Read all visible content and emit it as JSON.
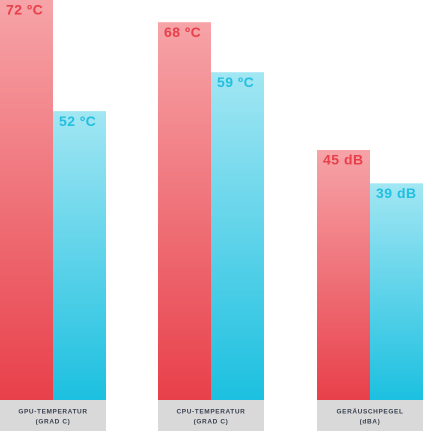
{
  "chart_data": {
    "type": "bar",
    "categories": [
      [
        "GPU-TEMPERATUR",
        "(GRAD C)"
      ],
      [
        "CPU-TEMPERATUR",
        "(GRAD C)"
      ],
      [
        "GERÄUSCHPEGEL",
        "(dBA)"
      ]
    ],
    "series": [
      {
        "color": "#e8404a",
        "color_top": "#f6a4a8",
        "label_color": "#e8404a",
        "values": [
          72,
          68,
          45
        ],
        "value_labels": [
          "72 ºC",
          "68 ºC",
          "45 dB"
        ]
      },
      {
        "color": "#1cc0e0",
        "color_top": "#a2e6f3",
        "label_color": "#22bfe0",
        "values": [
          52,
          59,
          39
        ],
        "value_labels": [
          "52 ºC",
          "59 ºC",
          "39 dB"
        ]
      }
    ]
  }
}
